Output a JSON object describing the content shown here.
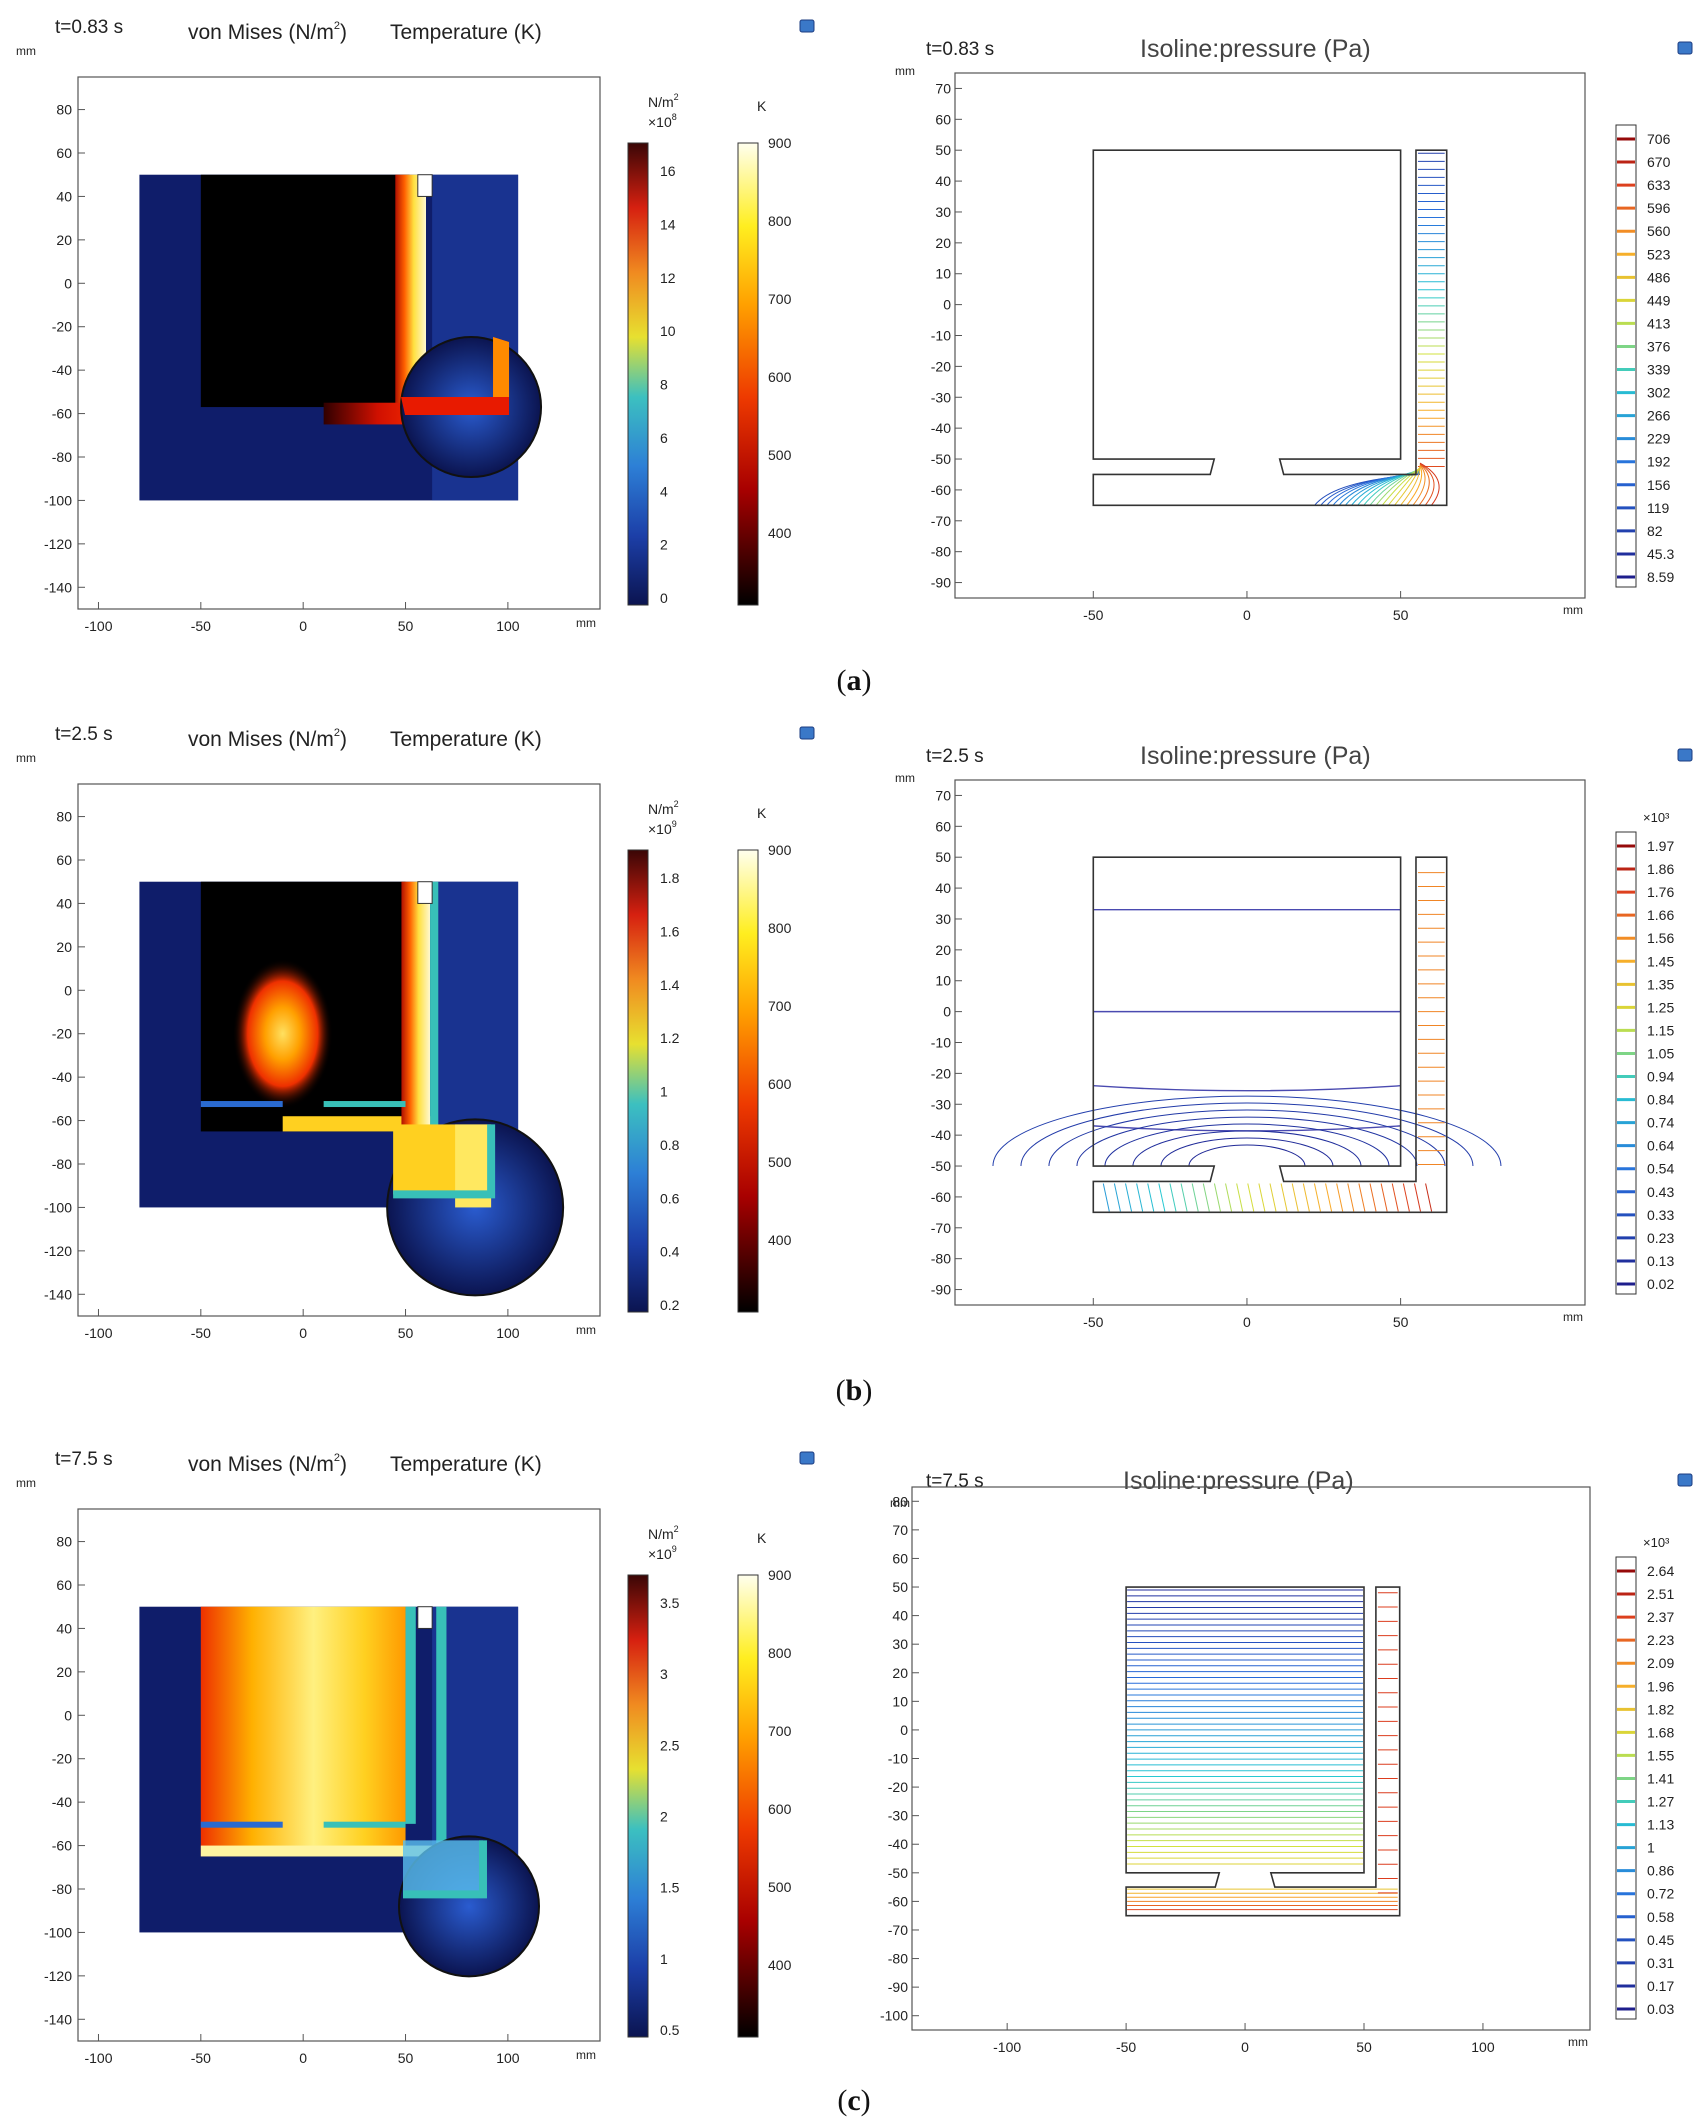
{
  "figure": {
    "panels": [
      {
        "letter": "a",
        "stress": {
          "time": "t=0.83 s",
          "title_vm": "von Mises (N/m",
          "title_sup": "2",
          "title_close": ")",
          "title_temp": "Temperature (K)",
          "stress_unit": "N/m",
          "stress_unit_sup": "2",
          "stress_scale": "×10",
          "stress_scale_exp": "8",
          "stress_ticks": [
            "16",
            "14",
            "12",
            "10",
            "8",
            "6",
            "4",
            "2",
            "0"
          ],
          "temp_unit": "K",
          "temp_ticks": [
            "900",
            "800",
            "700",
            "600",
            "500",
            "400"
          ],
          "case": "a"
        },
        "iso": {
          "time": "t=0.83 s",
          "title": "Isoline:pressure (Pa)",
          "mult": "",
          "levels": [
            "706",
            "670",
            "633",
            "596",
            "560",
            "523",
            "486",
            "449",
            "413",
            "376",
            "339",
            "302",
            "266",
            "229",
            "192",
            "156",
            "119",
            "82",
            "45.3",
            "8.59"
          ],
          "case": "a"
        }
      },
      {
        "letter": "b",
        "stress": {
          "time": "t=2.5 s",
          "title_vm": "von Mises (N/m",
          "title_sup": "2",
          "title_close": ")",
          "title_temp": "Temperature (K)",
          "stress_unit": "N/m",
          "stress_unit_sup": "2",
          "stress_scale": "×10",
          "stress_scale_exp": "9",
          "stress_ticks": [
            "1.8",
            "1.6",
            "1.4",
            "1.2",
            "1",
            "0.8",
            "0.6",
            "0.4",
            "0.2"
          ],
          "temp_unit": "K",
          "temp_ticks": [
            "900",
            "800",
            "700",
            "600",
            "500",
            "400"
          ],
          "case": "b"
        },
        "iso": {
          "time": "t=2.5 s",
          "title": "Isoline:pressure (Pa)",
          "mult": "×10³",
          "levels": [
            "1.97",
            "1.86",
            "1.76",
            "1.66",
            "1.56",
            "1.45",
            "1.35",
            "1.25",
            "1.15",
            "1.05",
            "0.94",
            "0.84",
            "0.74",
            "0.64",
            "0.54",
            "0.43",
            "0.33",
            "0.23",
            "0.13",
            "0.02"
          ],
          "case": "b"
        }
      },
      {
        "letter": "c",
        "stress": {
          "time": "t=7.5 s",
          "title_vm": "von Mises (N/m",
          "title_sup": "2",
          "title_close": ")",
          "title_temp": "Temperature (K)",
          "stress_unit": "N/m",
          "stress_unit_sup": "2",
          "stress_scale": "×10",
          "stress_scale_exp": "9",
          "stress_ticks": [
            "3.5",
            "3",
            "2.5",
            "2",
            "1.5",
            "1",
            "0.5"
          ],
          "temp_unit": "K",
          "temp_ticks": [
            "900",
            "800",
            "700",
            "600",
            "500",
            "400"
          ],
          "case": "c"
        },
        "iso": {
          "time": "t=7.5 s",
          "title": "Isoline:pressure (Pa)",
          "mult": "×10³",
          "levels": [
            "2.64",
            "2.51",
            "2.37",
            "2.23",
            "2.09",
            "1.96",
            "1.82",
            "1.68",
            "1.55",
            "1.41",
            "1.27",
            "1.13",
            "1",
            "0.86",
            "0.72",
            "0.58",
            "0.45",
            "0.31",
            "0.17",
            "0.03"
          ],
          "case": "c"
        }
      }
    ]
  },
  "chart_data": [
    {
      "type": "heatmap",
      "panel": "a-left",
      "title": "von Mises (N/m2) Temperature (K)",
      "time": "t=0.83 s",
      "x_unit": "mm",
      "y_unit": "mm",
      "xlim": [
        -110,
        145
      ],
      "ylim": [
        -150,
        95
      ],
      "x_ticks": [
        -100,
        -50,
        0,
        50,
        100
      ],
      "y_ticks": [
        80,
        60,
        40,
        20,
        0,
        -20,
        -40,
        -60,
        -80,
        -100,
        -120,
        -140
      ],
      "stress_range": [
        0,
        17
      ],
      "stress_scale": "x10^8",
      "temp_range": [
        300,
        900
      ]
    },
    {
      "type": "line",
      "panel": "a-right",
      "title": "Isoline:pressure (Pa)",
      "time": "t=0.83 s",
      "x_unit": "mm",
      "y_unit": "mm",
      "xlim": [
        -95,
        110
      ],
      "ylim": [
        -95,
        75
      ],
      "x_ticks": [
        -50,
        0,
        50
      ],
      "y_ticks": [
        70,
        60,
        50,
        40,
        30,
        20,
        10,
        0,
        -10,
        -20,
        -30,
        -40,
        -50,
        -60,
        -70,
        -80,
        -90
      ],
      "levels": [
        706,
        670,
        633,
        596,
        560,
        523,
        486,
        449,
        413,
        376,
        339,
        302,
        266,
        229,
        192,
        156,
        119,
        82,
        45.3,
        8.59
      ]
    },
    {
      "type": "heatmap",
      "panel": "b-left",
      "title": "von Mises (N/m2) Temperature (K)",
      "time": "t=2.5 s",
      "x_unit": "mm",
      "y_unit": "mm",
      "xlim": [
        -110,
        145
      ],
      "ylim": [
        -150,
        95
      ],
      "x_ticks": [
        -100,
        -50,
        0,
        50,
        100
      ],
      "y_ticks": [
        80,
        60,
        40,
        20,
        0,
        -20,
        -40,
        -60,
        -80,
        -100,
        -120,
        -140
      ],
      "stress_range": [
        0,
        1.8
      ],
      "stress_scale": "x10^9",
      "temp_range": [
        300,
        900
      ]
    },
    {
      "type": "line",
      "panel": "b-right",
      "title": "Isoline:pressure (Pa)",
      "time": "t=2.5 s",
      "x_unit": "mm",
      "y_unit": "mm",
      "xlim": [
        -95,
        110
      ],
      "ylim": [
        -95,
        75
      ],
      "x_ticks": [
        -50,
        0,
        50
      ],
      "y_ticks": [
        70,
        60,
        50,
        40,
        30,
        20,
        10,
        0,
        -10,
        -20,
        -30,
        -40,
        -50,
        -60,
        -70,
        -80,
        -90
      ],
      "levels_scale": "x10^3",
      "levels": [
        1.97,
        1.86,
        1.76,
        1.66,
        1.56,
        1.45,
        1.35,
        1.25,
        1.15,
        1.05,
        0.94,
        0.84,
        0.74,
        0.64,
        0.54,
        0.43,
        0.33,
        0.23,
        0.13,
        0.02
      ]
    },
    {
      "type": "heatmap",
      "panel": "c-left",
      "title": "von Mises (N/m2) Temperature (K)",
      "time": "t=7.5 s",
      "x_unit": "mm",
      "y_unit": "mm",
      "xlim": [
        -110,
        145
      ],
      "ylim": [
        -150,
        95
      ],
      "x_ticks": [
        -100,
        -50,
        0,
        50,
        100
      ],
      "y_ticks": [
        80,
        60,
        40,
        20,
        0,
        -20,
        -40,
        -60,
        -80,
        -100,
        -120,
        -140
      ],
      "stress_range": [
        0,
        3.5
      ],
      "stress_scale": "x10^9",
      "temp_range": [
        300,
        900
      ]
    },
    {
      "type": "line",
      "panel": "c-right",
      "title": "Isoline:pressure (Pa)",
      "time": "t=7.5 s",
      "x_unit": "mm",
      "y_unit": "mm",
      "xlim": [
        -140,
        145
      ],
      "ylim": [
        -105,
        85
      ],
      "x_ticks": [
        -100,
        -50,
        0,
        50,
        100
      ],
      "y_ticks": [
        80,
        70,
        60,
        50,
        40,
        30,
        20,
        10,
        0,
        -10,
        -20,
        -30,
        -40,
        -50,
        -60,
        -70,
        -80,
        -90,
        -100
      ],
      "levels_scale": "x10^3",
      "levels": [
        2.64,
        2.51,
        2.37,
        2.23,
        2.09,
        1.96,
        1.82,
        1.68,
        1.55,
        1.41,
        1.27,
        1.13,
        1,
        0.86,
        0.72,
        0.58,
        0.45,
        0.31,
        0.17,
        0.03
      ]
    }
  ]
}
